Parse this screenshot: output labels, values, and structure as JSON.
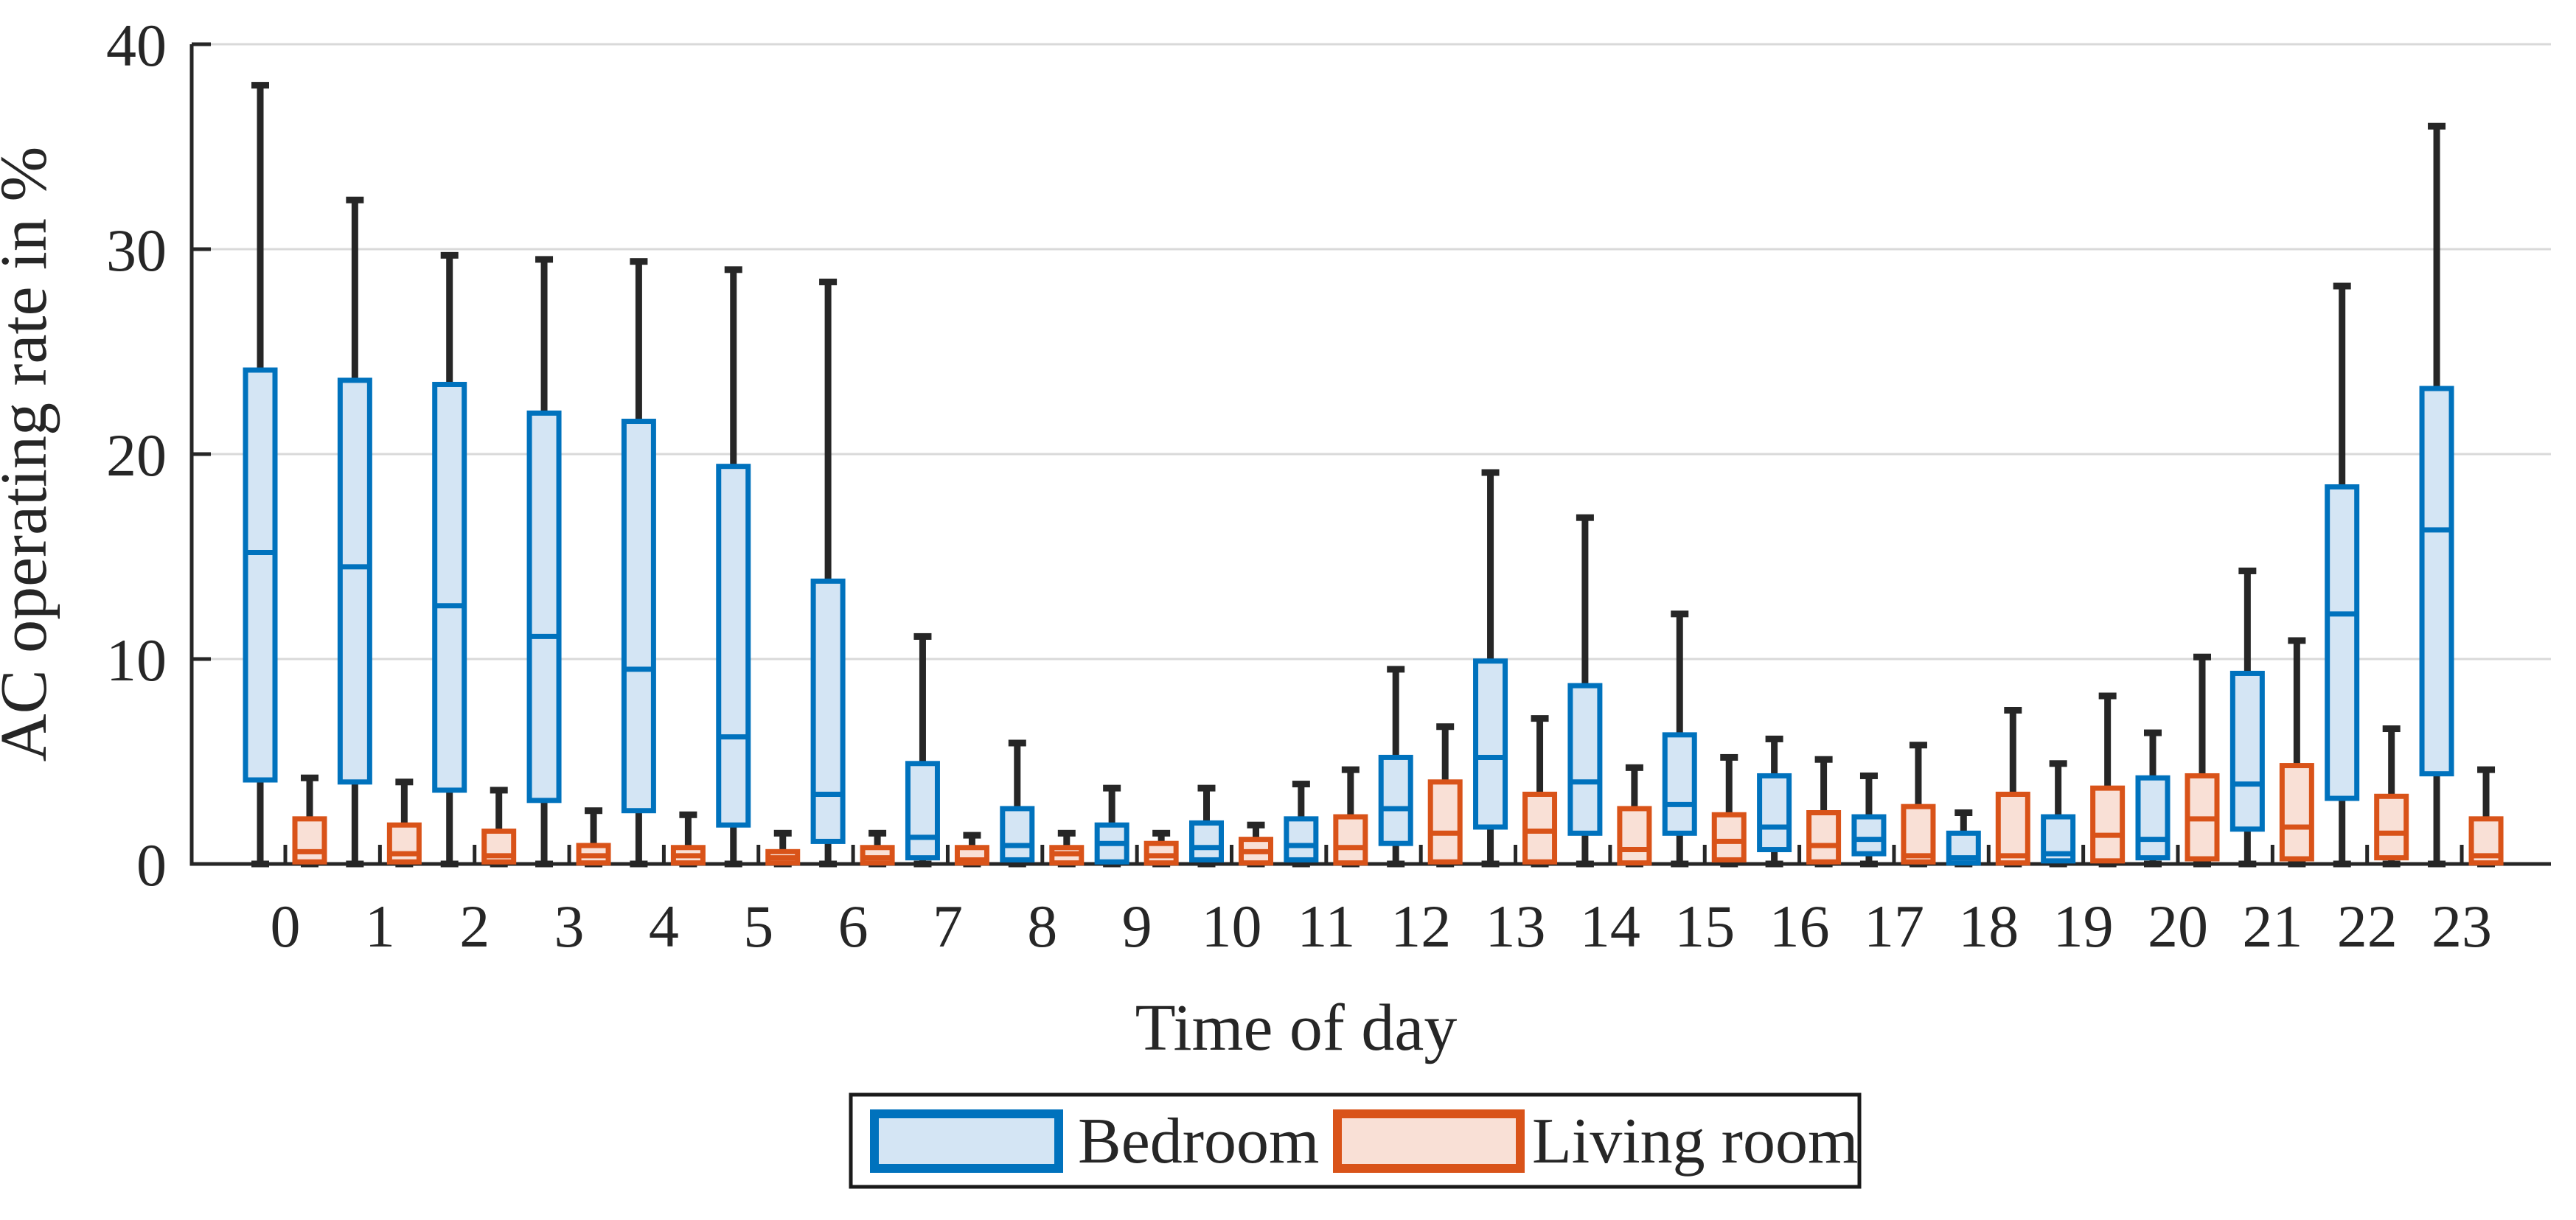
{
  "chart_data": {
    "type": "boxplot",
    "title": "",
    "xlabel": "Time of day",
    "ylabel": "AC operating rate in %",
    "x_categories": [
      "0",
      "1",
      "2",
      "3",
      "4",
      "5",
      "6",
      "7",
      "8",
      "9",
      "10",
      "11",
      "12",
      "13",
      "14",
      "15",
      "16",
      "17",
      "18",
      "19",
      "20",
      "21",
      "22",
      "23"
    ],
    "xlim": [
      -1,
      24
    ],
    "ylim": [
      0,
      40
    ],
    "yticks": [
      0,
      10,
      20,
      30,
      40
    ],
    "grid": "horizontal-gray-lines-at-10-20-30-40",
    "legend_position": "below-chart-centered",
    "series": [
      {
        "name": "Bedroom",
        "edge_color": "#0072BD",
        "fill_color": "#D4E5F4",
        "boxes": [
          {
            "hour": 0,
            "whisker_low": 0,
            "q1": 4.1,
            "median": 15.2,
            "q3": 24.1,
            "whisker_high": 38.0
          },
          {
            "hour": 1,
            "whisker_low": 0,
            "q1": 4.0,
            "median": 14.5,
            "q3": 23.6,
            "whisker_high": 32.4
          },
          {
            "hour": 2,
            "whisker_low": 0,
            "q1": 3.6,
            "median": 12.6,
            "q3": 23.4,
            "whisker_high": 29.7
          },
          {
            "hour": 3,
            "whisker_low": 0,
            "q1": 3.1,
            "median": 11.1,
            "q3": 22.0,
            "whisker_high": 29.5
          },
          {
            "hour": 4,
            "whisker_low": 0,
            "q1": 2.6,
            "median": 9.5,
            "q3": 21.6,
            "whisker_high": 29.4
          },
          {
            "hour": 5,
            "whisker_low": 0,
            "q1": 1.9,
            "median": 6.2,
            "q3": 19.4,
            "whisker_high": 29.0
          },
          {
            "hour": 6,
            "whisker_low": 0,
            "q1": 1.1,
            "median": 3.4,
            "q3": 13.8,
            "whisker_high": 28.4
          },
          {
            "hour": 7,
            "whisker_low": 0,
            "q1": 0.3,
            "median": 1.3,
            "q3": 4.9,
            "whisker_high": 11.1
          },
          {
            "hour": 8,
            "whisker_low": 0,
            "q1": 0.2,
            "median": 0.9,
            "q3": 2.7,
            "whisker_high": 5.9
          },
          {
            "hour": 9,
            "whisker_low": 0,
            "q1": 0.1,
            "median": 1.0,
            "q3": 1.9,
            "whisker_high": 3.7
          },
          {
            "hour": 10,
            "whisker_low": 0,
            "q1": 0.2,
            "median": 0.8,
            "q3": 2.0,
            "whisker_high": 3.7
          },
          {
            "hour": 11,
            "whisker_low": 0,
            "q1": 0.2,
            "median": 0.9,
            "q3": 2.2,
            "whisker_high": 3.9
          },
          {
            "hour": 12,
            "whisker_low": 0,
            "q1": 1.0,
            "median": 2.7,
            "q3": 5.2,
            "whisker_high": 9.5
          },
          {
            "hour": 13,
            "whisker_low": 0,
            "q1": 1.8,
            "median": 5.2,
            "q3": 9.9,
            "whisker_high": 19.1
          },
          {
            "hour": 14,
            "whisker_low": 0,
            "q1": 1.5,
            "median": 4.0,
            "q3": 8.7,
            "whisker_high": 16.9
          },
          {
            "hour": 15,
            "whisker_low": 0,
            "q1": 1.5,
            "median": 2.9,
            "q3": 6.3,
            "whisker_high": 12.2
          },
          {
            "hour": 16,
            "whisker_low": 0,
            "q1": 0.7,
            "median": 1.8,
            "q3": 4.3,
            "whisker_high": 6.1
          },
          {
            "hour": 17,
            "whisker_low": 0,
            "q1": 0.5,
            "median": 1.2,
            "q3": 2.3,
            "whisker_high": 4.3
          },
          {
            "hour": 18,
            "whisker_low": 0,
            "q1": 0.05,
            "median": 0.3,
            "q3": 1.5,
            "whisker_high": 2.5
          },
          {
            "hour": 19,
            "whisker_low": 0,
            "q1": 0.15,
            "median": 0.5,
            "q3": 2.3,
            "whisker_high": 4.9
          },
          {
            "hour": 20,
            "whisker_low": 0,
            "q1": 0.3,
            "median": 1.2,
            "q3": 4.2,
            "whisker_high": 6.4
          },
          {
            "hour": 21,
            "whisker_low": 0,
            "q1": 1.7,
            "median": 3.9,
            "q3": 9.3,
            "whisker_high": 14.3
          },
          {
            "hour": 22,
            "whisker_low": 0,
            "q1": 3.2,
            "median": 12.2,
            "q3": 18.4,
            "whisker_high": 28.2
          },
          {
            "hour": 23,
            "whisker_low": 0,
            "q1": 4.4,
            "median": 16.3,
            "q3": 23.2,
            "whisker_high": 36.0
          }
        ]
      },
      {
        "name": "Living room",
        "edge_color": "#D95319",
        "fill_color": "#F9E0D6",
        "boxes": [
          {
            "hour": 0,
            "whisker_low": 0,
            "q1": 0.1,
            "median": 0.6,
            "q3": 2.2,
            "whisker_high": 4.2
          },
          {
            "hour": 1,
            "whisker_low": 0,
            "q1": 0.1,
            "median": 0.5,
            "q3": 1.9,
            "whisker_high": 4.0
          },
          {
            "hour": 2,
            "whisker_low": 0,
            "q1": 0.1,
            "median": 0.4,
            "q3": 1.6,
            "whisker_high": 3.6
          },
          {
            "hour": 3,
            "whisker_low": 0,
            "q1": 0.05,
            "median": 0.4,
            "q3": 0.9,
            "whisker_high": 2.6
          },
          {
            "hour": 4,
            "whisker_low": 0,
            "q1": 0.05,
            "median": 0.4,
            "q3": 0.8,
            "whisker_high": 2.4
          },
          {
            "hour": 5,
            "whisker_low": 0,
            "q1": 0.05,
            "median": 0.3,
            "q3": 0.6,
            "whisker_high": 1.5
          },
          {
            "hour": 6,
            "whisker_low": 0,
            "q1": 0.05,
            "median": 0.3,
            "q3": 0.8,
            "whisker_high": 1.5
          },
          {
            "hour": 7,
            "whisker_low": 0,
            "q1": 0.05,
            "median": 0.2,
            "q3": 0.8,
            "whisker_high": 1.4
          },
          {
            "hour": 8,
            "whisker_low": 0,
            "q1": 0.05,
            "median": 0.5,
            "q3": 0.8,
            "whisker_high": 1.5
          },
          {
            "hour": 9,
            "whisker_low": 0,
            "q1": 0.05,
            "median": 0.4,
            "q3": 1.0,
            "whisker_high": 1.5
          },
          {
            "hour": 10,
            "whisker_low": 0,
            "q1": 0.05,
            "median": 0.6,
            "q3": 1.2,
            "whisker_high": 1.9
          },
          {
            "hour": 11,
            "whisker_low": 0,
            "q1": 0.05,
            "median": 0.8,
            "q3": 2.3,
            "whisker_high": 4.6
          },
          {
            "hour": 12,
            "whisker_low": 0,
            "q1": 0.1,
            "median": 1.5,
            "q3": 4.0,
            "whisker_high": 6.7
          },
          {
            "hour": 13,
            "whisker_low": 0,
            "q1": 0.1,
            "median": 1.6,
            "q3": 3.4,
            "whisker_high": 7.1
          },
          {
            "hour": 14,
            "whisker_low": 0,
            "q1": 0.05,
            "median": 0.7,
            "q3": 2.7,
            "whisker_high": 4.7
          },
          {
            "hour": 15,
            "whisker_low": 0,
            "q1": 0.2,
            "median": 1.1,
            "q3": 2.4,
            "whisker_high": 5.2
          },
          {
            "hour": 16,
            "whisker_low": 0,
            "q1": 0.1,
            "median": 0.9,
            "q3": 2.5,
            "whisker_high": 5.1
          },
          {
            "hour": 17,
            "whisker_low": 0,
            "q1": 0.1,
            "median": 0.4,
            "q3": 2.8,
            "whisker_high": 5.8
          },
          {
            "hour": 18,
            "whisker_low": 0,
            "q1": 0.05,
            "median": 0.4,
            "q3": 3.4,
            "whisker_high": 7.5
          },
          {
            "hour": 19,
            "whisker_low": 0,
            "q1": 0.15,
            "median": 1.4,
            "q3": 3.7,
            "whisker_high": 8.2
          },
          {
            "hour": 20,
            "whisker_low": 0,
            "q1": 0.25,
            "median": 2.2,
            "q3": 4.3,
            "whisker_high": 10.1
          },
          {
            "hour": 21,
            "whisker_low": 0,
            "q1": 0.25,
            "median": 1.8,
            "q3": 4.8,
            "whisker_high": 10.9
          },
          {
            "hour": 22,
            "whisker_low": 0,
            "q1": 0.3,
            "median": 1.5,
            "q3": 3.3,
            "whisker_high": 6.6
          },
          {
            "hour": 23,
            "whisker_low": 0,
            "q1": 0.05,
            "median": 0.4,
            "q3": 2.2,
            "whisker_high": 4.6
          }
        ]
      }
    ]
  },
  "colors": {
    "bedroom_edge": "#0072BD",
    "bedroom_fill": "#D4E5F4",
    "living_room_edge": "#D95319",
    "living_room_fill": "#F9E0D6",
    "whisker": "#262626",
    "axis": "#262626",
    "gridline": "#D9D9D9",
    "text": "#262626",
    "legend_border": "#1A1A1A",
    "background": "#FFFFFF"
  },
  "legend": {
    "entries": [
      {
        "label": "Bedroom",
        "swatch": "blue-box-swatch"
      },
      {
        "label": "Living room",
        "swatch": "orange-box-swatch"
      }
    ]
  }
}
